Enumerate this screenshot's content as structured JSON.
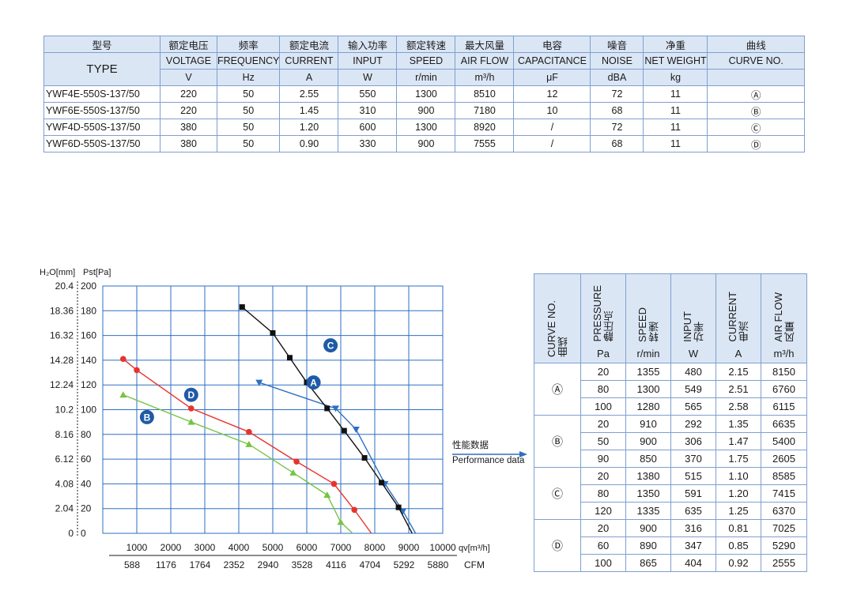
{
  "spec_table": {
    "headers_zh": [
      "型号",
      "额定电压",
      "频率",
      "额定电流",
      "输入功率",
      "额定转速",
      "最大风量",
      "电容",
      "噪音",
      "净重",
      "曲线"
    ],
    "type_label": "TYPE",
    "headers_en": [
      "VOLTAGE",
      "FREQUENCY",
      "CURRENT",
      "INPUT",
      "SPEED",
      "AIR FLOW",
      "CAPACITANCE",
      "NOISE",
      "NET WEIGHT",
      "CURVE NO."
    ],
    "units": [
      "V",
      "Hz",
      "A",
      "W",
      "r/min",
      "m³/h",
      "μF",
      "dBA",
      "kg",
      ""
    ],
    "rows": [
      [
        "YWF4E-550S-137/50",
        "220",
        "50",
        "2.55",
        "550",
        "1300",
        "8510",
        "12",
        "72",
        "11",
        "Ⓐ"
      ],
      [
        "YWF6E-550S-137/50",
        "220",
        "50",
        "1.45",
        "310",
        "900",
        "7180",
        "10",
        "68",
        "11",
        "Ⓑ"
      ],
      [
        "YWF4D-550S-137/50",
        "380",
        "50",
        "1.20",
        "600",
        "1300",
        "8920",
        "/",
        "72",
        "11",
        "Ⓒ"
      ],
      [
        "YWF6D-550S-137/50",
        "380",
        "50",
        "0.90",
        "330",
        "900",
        "7555",
        "/",
        "68",
        "11",
        "Ⓓ"
      ]
    ]
  },
  "perf_label": {
    "zh": "性能数据",
    "en": "Performance data"
  },
  "perf_table": {
    "headers": [
      {
        "en": "CURVE NO.",
        "zh": "曲线",
        "unit": ""
      },
      {
        "en": "PRESSURE",
        "zh": "静压点",
        "unit": "Pa"
      },
      {
        "en": "SPEED",
        "zh": "转速",
        "unit": "r/min"
      },
      {
        "en": "INPUT",
        "zh": "功率",
        "unit": "W"
      },
      {
        "en": "CURRENT",
        "zh": "电流",
        "unit": "A"
      },
      {
        "en": "AIR FLOW",
        "zh": "风量",
        "unit": "m³/h"
      }
    ],
    "groups": [
      {
        "curve": "Ⓐ",
        "rows": [
          [
            "20",
            "1355",
            "480",
            "2.15",
            "8150"
          ],
          [
            "80",
            "1300",
            "549",
            "2.51",
            "6760"
          ],
          [
            "100",
            "1280",
            "565",
            "2.58",
            "6115"
          ]
        ]
      },
      {
        "curve": "Ⓑ",
        "rows": [
          [
            "20",
            "910",
            "292",
            "1.35",
            "6635"
          ],
          [
            "50",
            "900",
            "306",
            "1.47",
            "5400"
          ],
          [
            "90",
            "850",
            "370",
            "1.75",
            "2605"
          ]
        ]
      },
      {
        "curve": "Ⓒ",
        "rows": [
          [
            "20",
            "1380",
            "515",
            "1.10",
            "8585"
          ],
          [
            "80",
            "1350",
            "591",
            "1.20",
            "7415"
          ],
          [
            "120",
            "1335",
            "635",
            "1.25",
            "6370"
          ]
        ]
      },
      {
        "curve": "Ⓓ",
        "rows": [
          [
            "20",
            "900",
            "316",
            "0.81",
            "7025"
          ],
          [
            "60",
            "890",
            "347",
            "0.85",
            "5290"
          ],
          [
            "100",
            "865",
            "404",
            "0.92",
            "2555"
          ]
        ]
      }
    ]
  },
  "chart_data": {
    "type": "line",
    "xlabel": "qv[m³/h]",
    "x2label": "CFM",
    "ylabel_left": "H₂O[mm]",
    "ylabel_right": "Pst[Pa]",
    "xlim": [
      0,
      10000
    ],
    "ylim": [
      0,
      200
    ],
    "x_ticks": [
      1000,
      2000,
      3000,
      4000,
      5000,
      6000,
      7000,
      8000,
      9000,
      10000
    ],
    "cfm_ticks": [
      "588",
      "1176",
      "1764",
      "2352",
      "2940",
      "3528",
      "4116",
      "4704",
      "5292",
      "5880"
    ],
    "y_ticks_pa": [
      0,
      20,
      40,
      60,
      80,
      100,
      120,
      140,
      160,
      180,
      200
    ],
    "y_ticks_mm": [
      "0",
      "2.04",
      "4.08",
      "6.12",
      "8.16",
      "10.2",
      "12.24",
      "14.28",
      "16.32",
      "18.36",
      "20.4"
    ],
    "grid": true,
    "series": [
      {
        "name": "A",
        "color": "#2e6fc2",
        "marker": "triangle-down",
        "points": [
          [
            4600,
            122
          ],
          [
            6850,
            101
          ],
          [
            7450,
            84
          ],
          [
            8300,
            40
          ],
          [
            8830,
            18
          ],
          [
            9200,
            0
          ]
        ]
      },
      {
        "name": "B",
        "color": "#76c442",
        "marker": "triangle-up",
        "points": [
          [
            600,
            112
          ],
          [
            2600,
            90
          ],
          [
            4300,
            72
          ],
          [
            5600,
            49
          ],
          [
            6600,
            31
          ],
          [
            7000,
            9
          ],
          [
            7350,
            0
          ]
        ]
      },
      {
        "name": "C",
        "color": "#111111",
        "marker": "square",
        "points": [
          [
            4100,
            183
          ],
          [
            5000,
            162
          ],
          [
            5500,
            142
          ],
          [
            6000,
            122
          ],
          [
            6600,
            101
          ],
          [
            7100,
            83
          ],
          [
            7700,
            61
          ],
          [
            8200,
            41
          ],
          [
            8700,
            21
          ],
          [
            9100,
            0
          ]
        ]
      },
      {
        "name": "D",
        "color": "#e8332c",
        "marker": "circle",
        "points": [
          [
            600,
            141
          ],
          [
            1000,
            132
          ],
          [
            2600,
            101
          ],
          [
            4300,
            82
          ],
          [
            5700,
            58
          ],
          [
            6800,
            40
          ],
          [
            7400,
            19
          ],
          [
            7900,
            0
          ]
        ]
      }
    ],
    "curve_labels": [
      "A",
      "B",
      "C",
      "D"
    ]
  }
}
